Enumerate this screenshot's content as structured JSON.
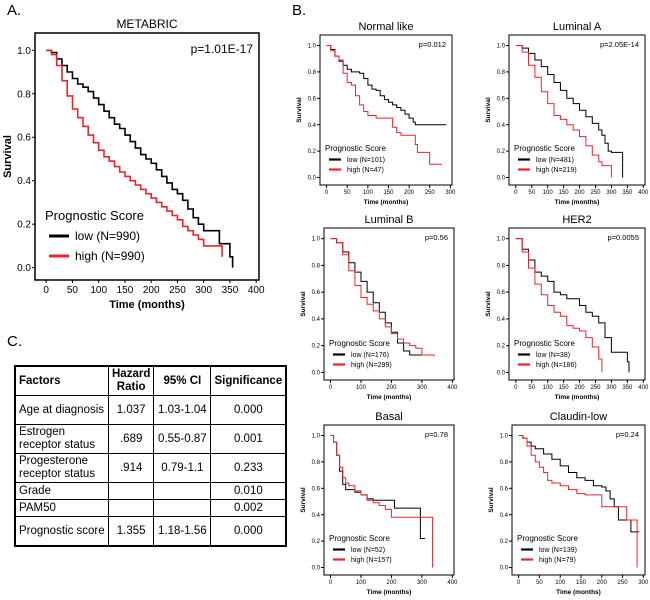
{
  "panel_labels": {
    "a": "A.",
    "b": "B.",
    "c": "C."
  },
  "chart_data": [
    {
      "id": "metabric",
      "type": "line",
      "subtype": "kaplan-meier",
      "title": "METABRIC",
      "pvalue": "p=1.01E-17",
      "xlabel": "Time (months)",
      "ylabel": "Survival",
      "xlim": [
        0,
        400
      ],
      "ylim": [
        0,
        1.0
      ],
      "xticks": [
        0,
        50,
        100,
        150,
        200,
        250,
        300,
        350,
        400
      ],
      "yticks": [
        "0.0",
        "0.2",
        "0.4",
        "0.6",
        "0.8",
        "1.0"
      ],
      "legend_title": "Prognostic Score",
      "legend_position": "bottom-left",
      "series": [
        {
          "name": "low (N=990)",
          "color": "#000000",
          "x": [
            0,
            10,
            20,
            30,
            40,
            50,
            60,
            70,
            80,
            90,
            100,
            110,
            120,
            130,
            140,
            150,
            160,
            170,
            180,
            190,
            200,
            210,
            220,
            230,
            240,
            250,
            260,
            270,
            280,
            290,
            300,
            320,
            330,
            340,
            350,
            355
          ],
          "y": [
            1.0,
            0.99,
            0.96,
            0.93,
            0.9,
            0.87,
            0.845,
            0.83,
            0.81,
            0.78,
            0.75,
            0.72,
            0.69,
            0.66,
            0.64,
            0.61,
            0.58,
            0.55,
            0.52,
            0.5,
            0.48,
            0.45,
            0.42,
            0.39,
            0.36,
            0.34,
            0.31,
            0.27,
            0.23,
            0.2,
            0.17,
            0.17,
            0.11,
            0.11,
            0.05,
            0.0
          ]
        },
        {
          "name": "high (N=990)",
          "color": "#e8262a",
          "x": [
            0,
            10,
            20,
            30,
            40,
            50,
            60,
            70,
            80,
            90,
            100,
            110,
            120,
            130,
            140,
            150,
            160,
            170,
            180,
            190,
            200,
            210,
            220,
            230,
            240,
            250,
            260,
            270,
            280,
            290,
            300,
            320,
            335
          ],
          "y": [
            1.0,
            0.98,
            0.93,
            0.86,
            0.79,
            0.73,
            0.69,
            0.65,
            0.61,
            0.575,
            0.54,
            0.51,
            0.49,
            0.465,
            0.44,
            0.42,
            0.4,
            0.38,
            0.36,
            0.34,
            0.32,
            0.3,
            0.28,
            0.26,
            0.24,
            0.22,
            0.19,
            0.17,
            0.15,
            0.13,
            0.1,
            0.1,
            0.05
          ]
        }
      ]
    },
    {
      "id": "normal-like",
      "type": "line",
      "subtype": "kaplan-meier",
      "title": "Normal like",
      "pvalue": "p=0.012",
      "xlabel": "Time (months)",
      "ylabel": "Survival",
      "xlim": [
        0,
        300
      ],
      "ylim": [
        0,
        1.0
      ],
      "xticks": [
        0,
        50,
        100,
        150,
        200,
        250,
        300
      ],
      "yticks": [
        "0.0",
        "0.2",
        "0.4",
        "0.6",
        "0.8",
        "1.0"
      ],
      "legend_title": "Prognostic Score",
      "legend_position": "bottom-left",
      "series": [
        {
          "name": "low (N=101)",
          "color": "#000000",
          "x": [
            0,
            10,
            20,
            30,
            40,
            50,
            60,
            70,
            80,
            90,
            100,
            110,
            120,
            130,
            140,
            150,
            160,
            170,
            180,
            190,
            200,
            210,
            215,
            290
          ],
          "y": [
            1.0,
            0.97,
            0.92,
            0.88,
            0.85,
            0.82,
            0.8,
            0.8,
            0.79,
            0.75,
            0.7,
            0.67,
            0.66,
            0.62,
            0.59,
            0.57,
            0.55,
            0.53,
            0.51,
            0.48,
            0.45,
            0.42,
            0.4,
            0.4
          ]
        },
        {
          "name": "high (N=47)",
          "color": "#e8262a",
          "x": [
            0,
            10,
            20,
            30,
            40,
            50,
            60,
            70,
            80,
            90,
            100,
            120,
            140,
            160,
            170,
            180,
            200,
            215,
            220,
            250,
            280
          ],
          "y": [
            1.0,
            0.96,
            0.92,
            0.89,
            0.79,
            0.72,
            0.7,
            0.62,
            0.55,
            0.5,
            0.47,
            0.45,
            0.45,
            0.38,
            0.34,
            0.32,
            0.32,
            0.25,
            0.19,
            0.1,
            0.1
          ]
        }
      ]
    },
    {
      "id": "luminal-a",
      "type": "line",
      "subtype": "kaplan-meier",
      "title": "Luminal A",
      "pvalue": "p=2.05E-14",
      "xlabel": "Time (months)",
      "ylabel": "Survival",
      "xlim": [
        0,
        400
      ],
      "ylim": [
        0,
        1.0
      ],
      "xticks": [
        0,
        50,
        100,
        150,
        200,
        250,
        300,
        350,
        400
      ],
      "yticks": [
        "0.0",
        "0.2",
        "0.4",
        "0.6",
        "0.8",
        "1.0"
      ],
      "legend_title": "Prognostic Score",
      "legend_position": "bottom-left",
      "series": [
        {
          "name": "low (N=481)",
          "color": "#000000",
          "x": [
            0,
            20,
            40,
            60,
            80,
            100,
            120,
            140,
            160,
            180,
            200,
            220,
            240,
            260,
            270,
            280,
            290,
            300,
            335
          ],
          "y": [
            1.0,
            0.98,
            0.94,
            0.89,
            0.84,
            0.78,
            0.72,
            0.66,
            0.6,
            0.56,
            0.51,
            0.46,
            0.41,
            0.36,
            0.32,
            0.26,
            0.2,
            0.19,
            0.0
          ]
        },
        {
          "name": "high (N=219)",
          "color": "#e8262a",
          "x": [
            0,
            20,
            40,
            60,
            80,
            100,
            120,
            140,
            160,
            180,
            200,
            220,
            240,
            260,
            270,
            300
          ],
          "y": [
            1.0,
            0.95,
            0.85,
            0.76,
            0.65,
            0.56,
            0.47,
            0.44,
            0.4,
            0.36,
            0.31,
            0.24,
            0.17,
            0.12,
            0.09,
            0.0
          ]
        }
      ]
    },
    {
      "id": "luminal-b",
      "type": "line",
      "subtype": "kaplan-meier",
      "title": "Luminal B",
      "pvalue": "p=0.56",
      "xlabel": "Time (months)",
      "ylabel": "Survival",
      "xlim": [
        0,
        400
      ],
      "ylim": [
        0,
        1.0
      ],
      "xticks": [
        0,
        100,
        200,
        300,
        400
      ],
      "yticks": [
        "0.0",
        "0.2",
        "0.4",
        "0.6",
        "0.8",
        "1.0"
      ],
      "legend_title": "Prognostic Score",
      "legend_position": "bottom-left",
      "series": [
        {
          "name": "low (N=176)",
          "color": "#000000",
          "x": [
            0,
            20,
            40,
            60,
            80,
            100,
            120,
            140,
            160,
            180,
            200,
            220,
            240,
            260,
            280,
            300
          ],
          "y": [
            1.0,
            0.97,
            0.9,
            0.82,
            0.75,
            0.68,
            0.6,
            0.52,
            0.45,
            0.37,
            0.3,
            0.22,
            0.16,
            0.13,
            0.13,
            0.13
          ]
        },
        {
          "name": "high (N=299)",
          "color": "#e8262a",
          "x": [
            0,
            20,
            40,
            60,
            80,
            100,
            120,
            140,
            160,
            180,
            200,
            220,
            240,
            260,
            280,
            300,
            340
          ],
          "y": [
            1.0,
            0.97,
            0.88,
            0.76,
            0.65,
            0.56,
            0.51,
            0.46,
            0.4,
            0.34,
            0.29,
            0.25,
            0.22,
            0.2,
            0.18,
            0.13,
            0.12
          ]
        }
      ]
    },
    {
      "id": "her2",
      "type": "line",
      "subtype": "kaplan-meier",
      "title": "HER2",
      "pvalue": "p=0.0055",
      "xlabel": "Time (months)",
      "ylabel": "Survival",
      "xlim": [
        0,
        400
      ],
      "ylim": [
        0,
        1.0
      ],
      "xticks": [
        0,
        50,
        100,
        150,
        200,
        250,
        300,
        350,
        400
      ],
      "yticks": [
        "0.0",
        "0.2",
        "0.4",
        "0.6",
        "0.8",
        "1.0"
      ],
      "legend_title": "Prognostic Score",
      "legend_position": "bottom-left",
      "series": [
        {
          "name": "low (N=38)",
          "color": "#000000",
          "x": [
            0,
            20,
            40,
            60,
            80,
            100,
            120,
            140,
            160,
            180,
            200,
            220,
            240,
            260,
            280,
            300,
            320,
            350,
            355
          ],
          "y": [
            1.0,
            0.92,
            0.84,
            0.75,
            0.72,
            0.68,
            0.6,
            0.58,
            0.55,
            0.55,
            0.5,
            0.45,
            0.42,
            0.37,
            0.26,
            0.15,
            0.15,
            0.08,
            0.0
          ]
        },
        {
          "name": "high (N=186)",
          "color": "#e8262a",
          "x": [
            0,
            20,
            40,
            60,
            80,
            100,
            120,
            140,
            160,
            180,
            200,
            220,
            240,
            260,
            270
          ],
          "y": [
            1.0,
            0.9,
            0.78,
            0.66,
            0.58,
            0.5,
            0.45,
            0.42,
            0.35,
            0.33,
            0.31,
            0.26,
            0.19,
            0.1,
            0.0
          ]
        }
      ]
    },
    {
      "id": "basal",
      "type": "line",
      "subtype": "kaplan-meier",
      "title": "Basal",
      "pvalue": "p=0.78",
      "xlabel": "Time (months)",
      "ylabel": "Survival",
      "xlim": [
        0,
        400
      ],
      "ylim": [
        0,
        1.0
      ],
      "xticks": [
        0,
        100,
        200,
        300,
        400
      ],
      "yticks": [
        "0.0",
        "0.2",
        "0.4",
        "0.6",
        "0.8",
        "1.0"
      ],
      "legend_title": "Prognostic Score",
      "legend_position": "bottom-left",
      "series": [
        {
          "name": "low (N=52)",
          "color": "#000000",
          "x": [
            0,
            10,
            20,
            30,
            40,
            50,
            60,
            80,
            100,
            120,
            140,
            160,
            200,
            210,
            290,
            295,
            310
          ],
          "y": [
            1.0,
            0.95,
            0.85,
            0.73,
            0.63,
            0.59,
            0.59,
            0.57,
            0.55,
            0.52,
            0.51,
            0.51,
            0.51,
            0.45,
            0.45,
            0.22,
            0.22
          ]
        },
        {
          "name": "high (N=157)",
          "color": "#e8262a",
          "x": [
            0,
            10,
            20,
            30,
            40,
            50,
            60,
            80,
            100,
            120,
            140,
            160,
            180,
            200,
            220,
            260,
            300,
            335
          ],
          "y": [
            1.0,
            0.95,
            0.85,
            0.76,
            0.68,
            0.64,
            0.62,
            0.58,
            0.55,
            0.51,
            0.49,
            0.47,
            0.44,
            0.38,
            0.38,
            0.38,
            0.38,
            0.0
          ]
        }
      ]
    },
    {
      "id": "claudin-low",
      "type": "line",
      "subtype": "kaplan-meier",
      "title": "Claudin-low",
      "pvalue": "p=0.24",
      "xlabel": "Time (months)",
      "ylabel": "Survival",
      "xlim": [
        0,
        300
      ],
      "ylim": [
        0,
        1.0
      ],
      "xticks": [
        0,
        50,
        100,
        150,
        200,
        250,
        300
      ],
      "yticks": [
        "0.0",
        "0.2",
        "0.4",
        "0.6",
        "0.8",
        "1.0"
      ],
      "legend_title": "Prognostic Score",
      "legend_position": "bottom-left",
      "series": [
        {
          "name": "low (N=139)",
          "color": "#000000",
          "x": [
            0,
            10,
            20,
            30,
            40,
            60,
            80,
            100,
            120,
            140,
            160,
            180,
            200,
            210,
            220,
            230,
            240,
            260,
            270,
            290
          ],
          "y": [
            1.0,
            0.98,
            0.95,
            0.92,
            0.9,
            0.86,
            0.82,
            0.77,
            0.72,
            0.68,
            0.66,
            0.62,
            0.61,
            0.58,
            0.52,
            0.46,
            0.36,
            0.36,
            0.27,
            0.27
          ]
        },
        {
          "name": "high (N=79)",
          "color": "#e8262a",
          "x": [
            0,
            10,
            20,
            30,
            40,
            50,
            60,
            70,
            80,
            100,
            120,
            140,
            160,
            180,
            190,
            200,
            240,
            260,
            280,
            285
          ],
          "y": [
            1.0,
            0.98,
            0.92,
            0.85,
            0.8,
            0.76,
            0.72,
            0.66,
            0.64,
            0.62,
            0.59,
            0.56,
            0.55,
            0.55,
            0.55,
            0.46,
            0.46,
            0.36,
            0.36,
            0.0
          ]
        }
      ]
    },
    {
      "id": "cox-table",
      "type": "table",
      "columns": [
        "Factors",
        "Hazard Ratio",
        "95% CI",
        "Significance"
      ],
      "rows": [
        {
          "factor": "Age at diagnosis",
          "hr": "1.037",
          "ci": "1.03-1.04",
          "sig": "0.000"
        },
        {
          "factor": "Estrogen receptor status",
          "hr": ".689",
          "ci": "0.55-0.87",
          "sig": "0.001"
        },
        {
          "factor": "Progesterone receptor status",
          "hr": ".914",
          "ci": "0.79-1.1",
          "sig": "0.233"
        },
        {
          "factor": "Grade",
          "hr": "",
          "ci": "",
          "sig": "0.010"
        },
        {
          "factor": "PAM50",
          "hr": "",
          "ci": "",
          "sig": "0.002"
        },
        {
          "factor": "Prognostic score",
          "hr": "1.355",
          "ci": "1.18-1.56",
          "sig": "0.000"
        }
      ]
    }
  ]
}
